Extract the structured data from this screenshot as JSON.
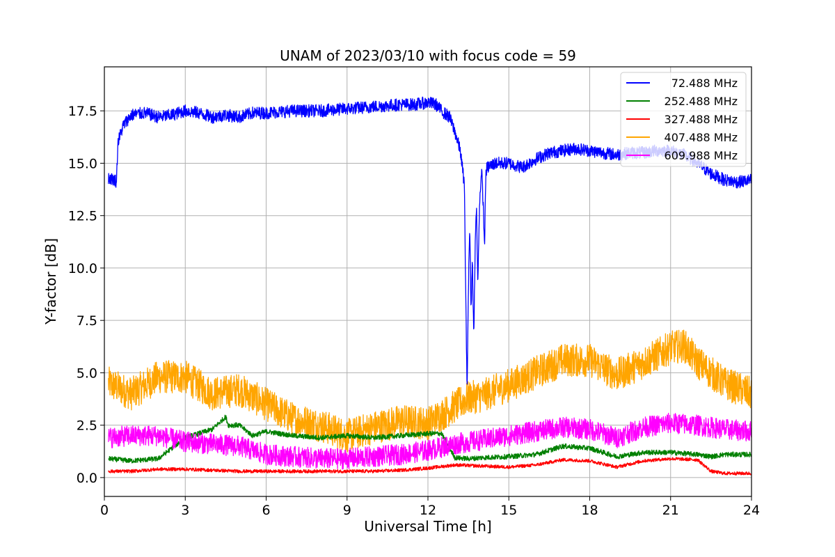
{
  "chart_data": {
    "type": "line",
    "title": "UNAM of 2023/03/10 with focus code = 59",
    "xlabel": "Universal Time [h]",
    "ylabel": "Y-factor [dB]",
    "xlim": [
      0,
      24
    ],
    "ylim": [
      -0.9,
      19.6
    ],
    "xticks": [
      0,
      3,
      6,
      9,
      12,
      15,
      18,
      21,
      24
    ],
    "xtick_labels": [
      "0",
      "3",
      "6",
      "9",
      "12",
      "15",
      "18",
      "21",
      "24"
    ],
    "yticks": [
      0.0,
      2.5,
      5.0,
      7.5,
      10.0,
      12.5,
      15.0,
      17.5
    ],
    "ytick_labels": [
      "0.0",
      "2.5",
      "5.0",
      "7.5",
      "10.0",
      "12.5",
      "15.0",
      "17.5"
    ],
    "grid": true,
    "legend_position": "top-right",
    "series": [
      {
        "name": " 72.488 MHz",
        "color": "#0000ff",
        "noise": 0.3,
        "x": [
          0.15,
          0.4,
          0.45,
          0.5,
          0.7,
          1.0,
          1.5,
          2.0,
          2.5,
          3.0,
          3.5,
          4.0,
          4.5,
          5.0,
          5.5,
          6.0,
          7.0,
          8.0,
          9.0,
          10.0,
          11.0,
          11.5,
          12.0,
          12.3,
          12.5,
          12.8,
          13.0,
          13.2,
          13.35,
          13.45,
          13.5,
          13.55,
          13.6,
          13.65,
          13.7,
          13.75,
          13.8,
          13.85,
          13.9,
          13.95,
          14.0,
          14.05,
          14.1,
          14.15,
          14.2,
          14.5,
          15.0,
          15.5,
          16.0,
          16.5,
          17.0,
          17.5,
          18.0,
          18.5,
          19.0,
          19.5,
          20.0,
          20.5,
          21.0,
          21.5,
          22.0,
          22.5,
          23.0,
          23.5,
          24.0
        ],
        "y": [
          14.3,
          14.2,
          14.1,
          16.0,
          16.8,
          17.3,
          17.4,
          17.2,
          17.3,
          17.5,
          17.4,
          17.2,
          17.3,
          17.2,
          17.4,
          17.4,
          17.5,
          17.5,
          17.6,
          17.7,
          17.8,
          17.8,
          17.9,
          17.8,
          17.5,
          17.2,
          16.5,
          15.6,
          14.0,
          4.0,
          9.0,
          12.0,
          8.0,
          10.5,
          6.5,
          11.0,
          13.0,
          9.0,
          12.5,
          14.0,
          14.5,
          13.0,
          11.0,
          14.6,
          14.8,
          15.0,
          15.0,
          14.8,
          15.2,
          15.5,
          15.6,
          15.7,
          15.6,
          15.5,
          15.4,
          15.5,
          15.5,
          15.6,
          15.6,
          15.4,
          15.0,
          14.5,
          14.2,
          14.1,
          14.2
        ]
      },
      {
        "name": "252.488 MHz",
        "color": "#008000",
        "noise": 0.12,
        "x": [
          0.15,
          1.0,
          2.0,
          3.0,
          4.0,
          4.5,
          4.6,
          5.0,
          5.5,
          6.0,
          7.0,
          8.0,
          9.0,
          10.0,
          11.0,
          12.0,
          12.5,
          13.0,
          13.5,
          14.0,
          15.0,
          16.0,
          17.0,
          18.0,
          19.0,
          20.0,
          21.0,
          22.0,
          22.5,
          23.0,
          24.0
        ],
        "y": [
          0.9,
          0.8,
          0.9,
          1.9,
          2.3,
          2.9,
          2.5,
          2.5,
          2.0,
          2.2,
          2.0,
          1.9,
          2.0,
          1.9,
          2.0,
          2.1,
          2.1,
          0.95,
          0.9,
          0.95,
          1.0,
          1.1,
          1.5,
          1.4,
          1.0,
          1.2,
          1.2,
          1.1,
          1.0,
          1.1,
          1.1
        ]
      },
      {
        "name": "327.488 MHz",
        "color": "#ff0000",
        "noise": 0.08,
        "x": [
          0.15,
          1.0,
          2.0,
          3.0,
          4.0,
          5.0,
          6.0,
          7.0,
          8.0,
          9.0,
          10.0,
          11.0,
          12.0,
          13.0,
          14.0,
          15.0,
          16.0,
          17.0,
          18.0,
          19.0,
          20.0,
          21.0,
          22.0,
          22.5,
          23.0,
          24.0
        ],
        "y": [
          0.3,
          0.3,
          0.4,
          0.4,
          0.35,
          0.3,
          0.3,
          0.3,
          0.3,
          0.3,
          0.3,
          0.35,
          0.45,
          0.6,
          0.55,
          0.5,
          0.6,
          0.85,
          0.8,
          0.5,
          0.8,
          0.9,
          0.85,
          0.3,
          0.2,
          0.2
        ]
      },
      {
        "name": "407.488 MHz",
        "color": "#ffa500",
        "noise": 0.8,
        "x": [
          0.15,
          1.0,
          2.0,
          3.0,
          4.0,
          5.0,
          6.0,
          7.0,
          8.0,
          9.0,
          10.0,
          11.0,
          12.0,
          12.5,
          13.0,
          13.5,
          14.0,
          15.0,
          16.0,
          17.0,
          18.0,
          19.0,
          20.0,
          21.0,
          21.5,
          22.0,
          23.0,
          24.0
        ],
        "y": [
          4.5,
          4.0,
          4.8,
          4.8,
          4.0,
          4.2,
          3.5,
          2.8,
          2.5,
          2.0,
          2.4,
          2.7,
          2.6,
          3.0,
          3.4,
          3.8,
          3.9,
          4.4,
          5.0,
          5.6,
          5.6,
          4.9,
          5.5,
          6.2,
          6.3,
          5.5,
          4.5,
          4.0
        ]
      },
      {
        "name": "609.988 MHz",
        "color": "#ff00ff",
        "noise": 0.5,
        "x": [
          0.15,
          1.0,
          2.0,
          3.0,
          4.0,
          5.0,
          6.0,
          7.0,
          8.0,
          9.0,
          10.0,
          11.0,
          12.0,
          13.0,
          14.0,
          15.0,
          16.0,
          17.0,
          18.0,
          19.0,
          20.0,
          21.0,
          22.0,
          23.0,
          24.0
        ],
        "y": [
          1.9,
          2.0,
          2.0,
          1.7,
          1.6,
          1.5,
          1.1,
          1.0,
          0.9,
          0.9,
          1.0,
          1.1,
          1.3,
          1.6,
          1.8,
          2.0,
          2.2,
          2.4,
          2.3,
          1.9,
          2.4,
          2.6,
          2.5,
          2.3,
          2.2
        ]
      }
    ]
  }
}
